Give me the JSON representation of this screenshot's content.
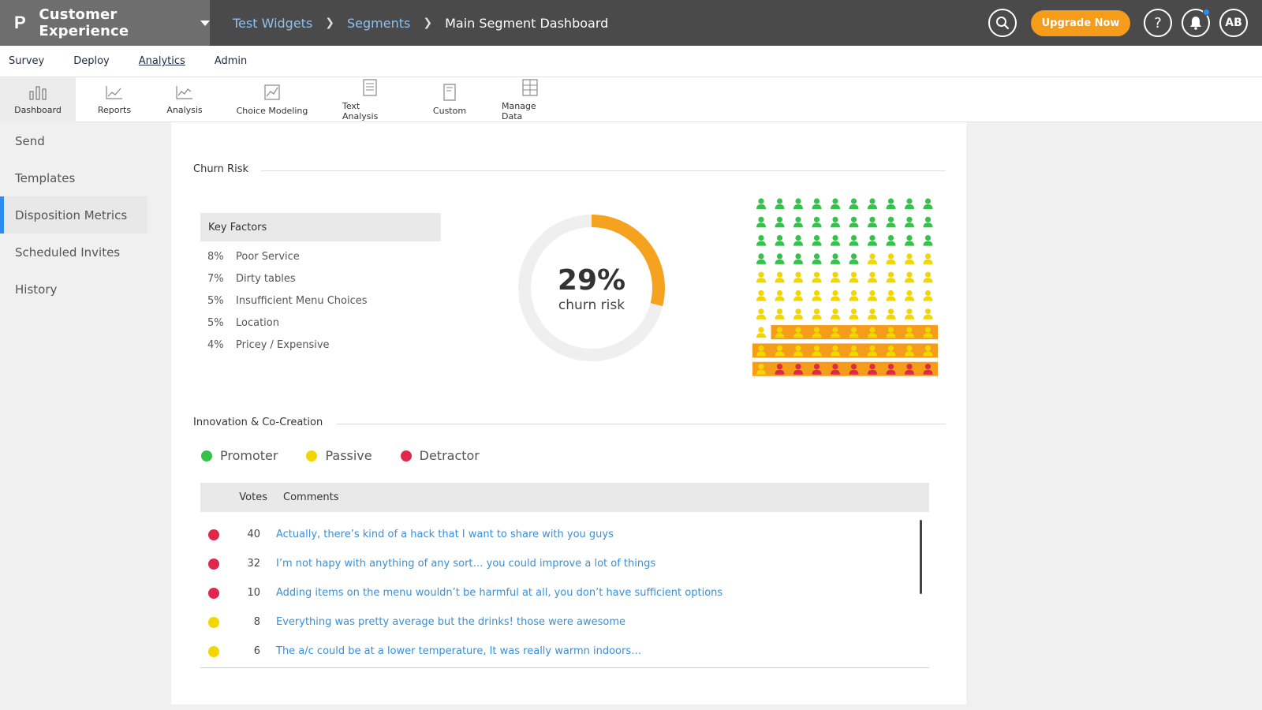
{
  "app": {
    "logo_letter": "P",
    "title": "Customer Experience"
  },
  "breadcrumb": [
    "Test Widgets",
    "Segments",
    "Main Segment Dashboard"
  ],
  "header": {
    "upgrade_label": "Upgrade Now",
    "help_label": "?",
    "avatar_initials": "AB"
  },
  "subnav": [
    "Survey",
    "Deploy",
    "Analytics",
    "Admin"
  ],
  "subnav_active": "Analytics",
  "toolbar": [
    "Dashboard",
    "Reports",
    "Analysis",
    "Choice Modeling",
    "Text Analysis",
    "Custom",
    "Manage Data"
  ],
  "sidebar": [
    "Send",
    "Templates",
    "Disposition Metrics",
    "Scheduled Invites",
    "History"
  ],
  "sidebar_active": "Disposition Metrics",
  "churn": {
    "title": "Churn Risk",
    "key_factors_title": "Key Factors",
    "factors": [
      {
        "pct": "8%",
        "label": "Poor Service"
      },
      {
        "pct": "7%",
        "label": "Dirty tables"
      },
      {
        "pct": "5%",
        "label": "Insufficient Menu Choices"
      },
      {
        "pct": "5%",
        "label": "Location"
      },
      {
        "pct": "4%",
        "label": "Pricey / Expensive"
      }
    ],
    "value_text": "29%",
    "value_fraction": 0.29,
    "label": "churn risk",
    "people_counts": {
      "promoter": 36,
      "passive": 55,
      "detractor": 9
    },
    "highlighted_count": 29
  },
  "innovation": {
    "title": "Innovation & Co-Creation",
    "legend": [
      {
        "label": "Promoter",
        "color": "#34c24a"
      },
      {
        "label": "Passive",
        "color": "#f2d600"
      },
      {
        "label": "Detractor",
        "color": "#e0284a"
      }
    ],
    "columns": {
      "votes": "Votes",
      "comments": "Comments"
    },
    "rows": [
      {
        "type": "detractor",
        "votes": "40",
        "comment": "Actually, there’s kind of a hack that I want to share with you guys"
      },
      {
        "type": "detractor",
        "votes": "32",
        "comment": "I’m not hapy with anything of any sort… you could improve a lot of things"
      },
      {
        "type": "detractor",
        "votes": "10",
        "comment": "Adding items on the menu wouldn’t be harmful at all, you don’t have sufficient options"
      },
      {
        "type": "passive",
        "votes": "8",
        "comment": "Everything was pretty average but the drinks! those were awesome"
      },
      {
        "type": "passive",
        "votes": "6",
        "comment": "The a/c could be at a lower temperature, It was really warmn indoors…"
      }
    ]
  },
  "colors": {
    "accent": "#f59c1a",
    "link": "#3a8fd6",
    "promoter": "#34c24a",
    "passive": "#f2d600",
    "detractor": "#e0284a",
    "highlight": "#f59c1a"
  }
}
